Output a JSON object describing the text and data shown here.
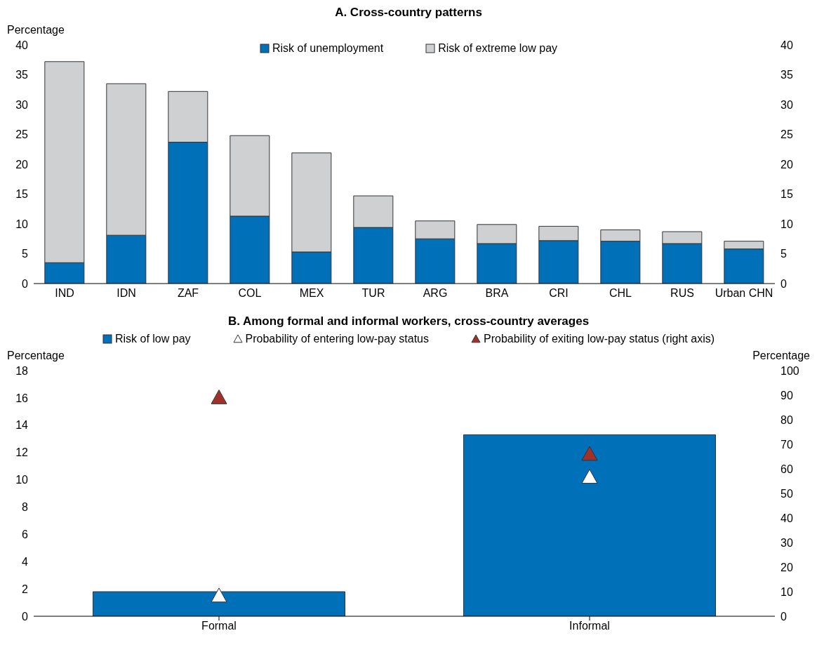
{
  "chart_data": [
    {
      "type": "bar",
      "title": "A. Cross-country patterns",
      "ylabel": "Percentage",
      "categories": [
        "IND",
        "IDN",
        "ZAF",
        "COL",
        "MEX",
        "TUR",
        "ARG",
        "BRA",
        "CRI",
        "CHL",
        "RUS",
        "Urban CHN"
      ],
      "stacked": true,
      "legend": "top",
      "grid": false,
      "series": [
        {
          "name": "Risk of  unemployment",
          "color": "#0070b8",
          "values": [
            3.5,
            8.1,
            23.7,
            11.3,
            5.3,
            9.4,
            7.5,
            6.7,
            7.2,
            7.1,
            6.7,
            5.8
          ]
        },
        {
          "name": "Risk of extreme low pay",
          "color": "#cfd0d2",
          "values": [
            33.7,
            25.4,
            8.5,
            13.5,
            16.6,
            5.3,
            3.0,
            3.2,
            2.4,
            1.9,
            2.0,
            1.3
          ]
        }
      ],
      "ylim": [
        0,
        40
      ],
      "yticks": [
        0,
        5,
        10,
        15,
        20,
        25,
        30,
        35,
        40
      ],
      "y2lim": [
        0,
        40
      ],
      "y2ticks": [
        0,
        5,
        10,
        15,
        20,
        25,
        30,
        35,
        40
      ]
    },
    {
      "type": "bar",
      "title": "B. Among formal and informal workers, cross-country averages",
      "ylabel": "Percentage",
      "y2label": "Percentage",
      "categories": [
        "Formal",
        "Informal"
      ],
      "legend": "top",
      "grid": false,
      "marker": "triangle",
      "series": [
        {
          "name": "Risk of low pay",
          "type": "bar",
          "color": "#0070b8",
          "values": [
            1.8,
            13.3
          ]
        },
        {
          "name": "Probability of entering low-pay status",
          "type": "scatter",
          "color": "#ffffff",
          "x": [
            "Formal",
            "Informal"
          ],
          "values": [
            1.5,
            10.2
          ]
        },
        {
          "name": "Probability of exiting low-pay status (right axis)",
          "type": "scatter",
          "axis": "y2",
          "color": "#a0322b",
          "x": [
            "Formal",
            "Informal"
          ],
          "values": [
            89,
            66
          ]
        }
      ],
      "ylim": [
        0,
        18
      ],
      "yticks": [
        0,
        2,
        4,
        6,
        8,
        10,
        12,
        14,
        16,
        18
      ],
      "y2lim": [
        0,
        100
      ],
      "y2ticks": [
        0,
        10,
        20,
        30,
        40,
        50,
        60,
        70,
        80,
        90,
        100
      ]
    }
  ]
}
